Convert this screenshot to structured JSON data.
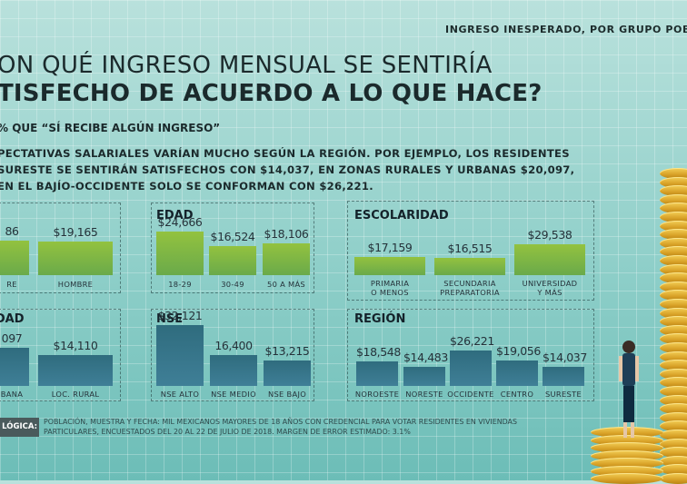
{
  "header": {
    "top_right": "INGRESO INESPERADO, POR GRUPO POB",
    "title_line1": "ON QUÉ INGRESO MENSUAL SE SENTIRÍA",
    "title_line2": "TISFECHO DE ACUERDO A LO QUE HACE?",
    "subtitle": "% QUE “SÍ RECIBE ALGÚN INGRESO”",
    "lead": [
      "PECTATIVAS SALARIALES VARÍAN MUCHO SEGÚN LA REGIÓN. POR EJEMPLO, LOS RESIDENTES",
      "SURESTE SE SENTIRÁN SATISFECHOS CON $14,037, EN ZONAS RURALES Y URBANAS $20,097,",
      "EN EL BAJÍO-OCCIDENTE SOLO SE CONFORMAN CON $26,221."
    ]
  },
  "chart_data": [
    {
      "type": "bar",
      "title": "",
      "categories": [
        "RE",
        "HOMBRE"
      ],
      "values": [
        null,
        19165
      ],
      "labels": [
        "86",
        "$19,165"
      ],
      "color": "#8cbf43"
    },
    {
      "type": "bar",
      "title": "EDAD",
      "categories": [
        "18-29",
        "30-49",
        "50 A MÁS"
      ],
      "values": [
        24666,
        16524,
        18106
      ],
      "labels": [
        "$24,666",
        "$16,524",
        "$18,106"
      ],
      "color": "#8cbf43"
    },
    {
      "type": "bar",
      "title": "ESCOLARIDAD",
      "categories": [
        "PRIMARIA\nO MENOS",
        "SECUNDARIA\nPREPARATORIA",
        "UNIVERSIDAD\nY MÁS"
      ],
      "values": [
        17159,
        16515,
        29538
      ],
      "labels": [
        "$17,159",
        "$16,515",
        "$29,538"
      ],
      "color": "#8cbf43"
    },
    {
      "type": "bar",
      "title": "IDAD",
      "categories": [
        "BANA",
        "LOC. RURAL"
      ],
      "values": [
        null,
        14110
      ],
      "labels": [
        "097",
        "$14,110"
      ],
      "color": "#2f6c7e"
    },
    {
      "type": "bar",
      "title": "NSE",
      "categories": [
        "NSE ALTO",
        "NSE MEDIO",
        "NSE BAJO"
      ],
      "values": [
        32121,
        16400,
        13215
      ],
      "labels": [
        "$32,121",
        "16,400",
        "$13,215"
      ],
      "color": "#2f6c7e"
    },
    {
      "type": "bar",
      "title": "REGIÓN",
      "categories": [
        "NOROESTE",
        "NORESTE",
        "OCCIDENTE",
        "CENTRO",
        "SURESTE"
      ],
      "values": [
        18548,
        14483,
        26221,
        19056,
        14037
      ],
      "labels": [
        "$18,548",
        "$14,483",
        "$26,221",
        "$19,056",
        "$14,037"
      ],
      "color": "#2f6c7e"
    }
  ],
  "footer": {
    "tag": "LÓGICA:",
    "text": "POBLACIÓN, MUESTRA Y FECHA: MIL MEXICANOS MAYORES DE 18 AÑOS CON CREDENCIAL PARA VOTAR RESIDENTES EN VIVIENDAS PARTICULARES, ENCUESTADOS DEL 20 AL 22 DE JULIO DE 2018. MARGEN DE ERROR ESTIMADO: 3.1%"
  }
}
